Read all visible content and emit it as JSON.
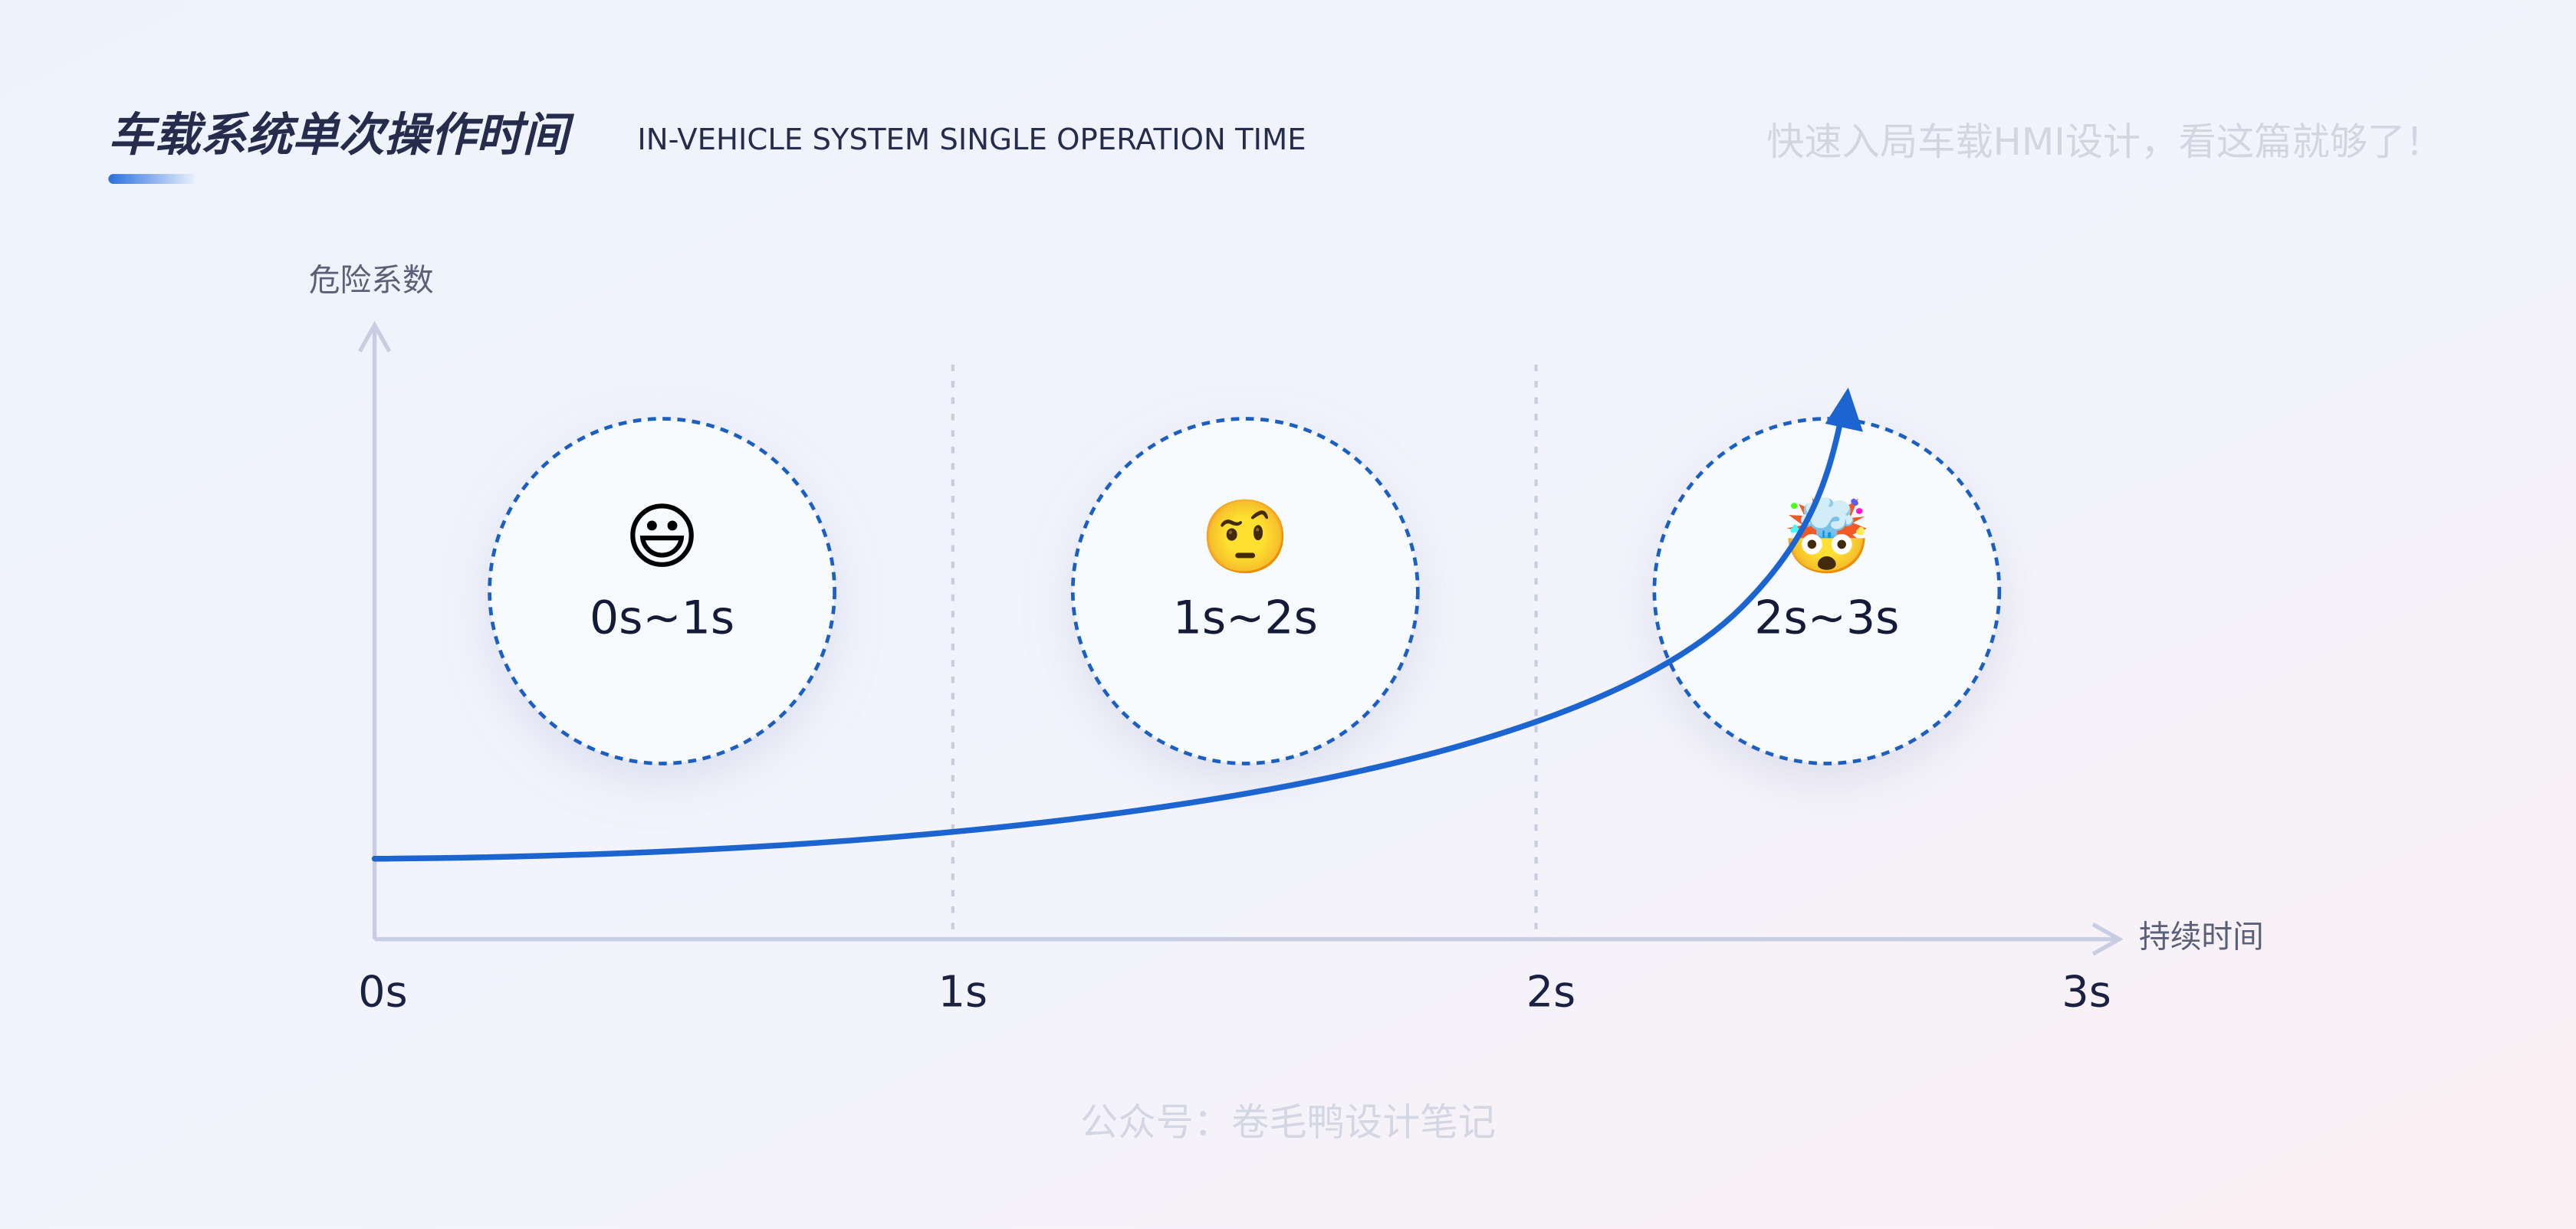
{
  "header": {
    "title": "车载系统单次操作时间",
    "subtitle": "IN-VEHICLE SYSTEM SINGLE OPERATION TIME",
    "slogan": "快速入局车载HMI设计，看这篇就够了！"
  },
  "axes": {
    "y_label": "危险系数",
    "x_label": "持续时间",
    "ticks": [
      "0s",
      "1s",
      "2s",
      "3s"
    ]
  },
  "zones": [
    {
      "icon": "😃",
      "label": "0s~1s"
    },
    {
      "icon": "🤨",
      "label": "1s~2s"
    },
    {
      "icon": "🤯",
      "label": "2s~3s"
    }
  ],
  "footer": "公众号：卷毛鸭设计笔记"
}
